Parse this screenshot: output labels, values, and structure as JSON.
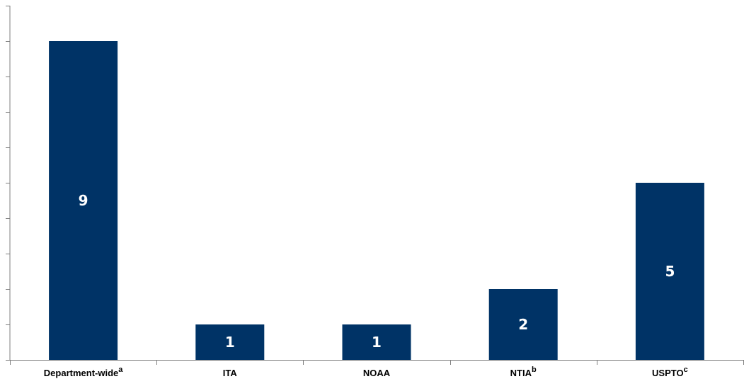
{
  "chart_data": {
    "type": "bar",
    "title": "",
    "xlabel": "",
    "ylabel": "",
    "categories": [
      "Department-wide",
      "ITA",
      "NOAA",
      "NTIA",
      "USPTO"
    ],
    "category_superscripts": [
      "a",
      "",
      "",
      "b",
      "c"
    ],
    "values": [
      9,
      1,
      1,
      2,
      5
    ],
    "data_labels": [
      "9",
      "1",
      "1",
      "2",
      "5"
    ],
    "ylim": [
      0,
      10
    ],
    "ytick_step": 1,
    "ytick_labels_shown": false,
    "grid": false,
    "legend": "none",
    "bar_color": "#003366",
    "label_color": "#ffffff"
  }
}
